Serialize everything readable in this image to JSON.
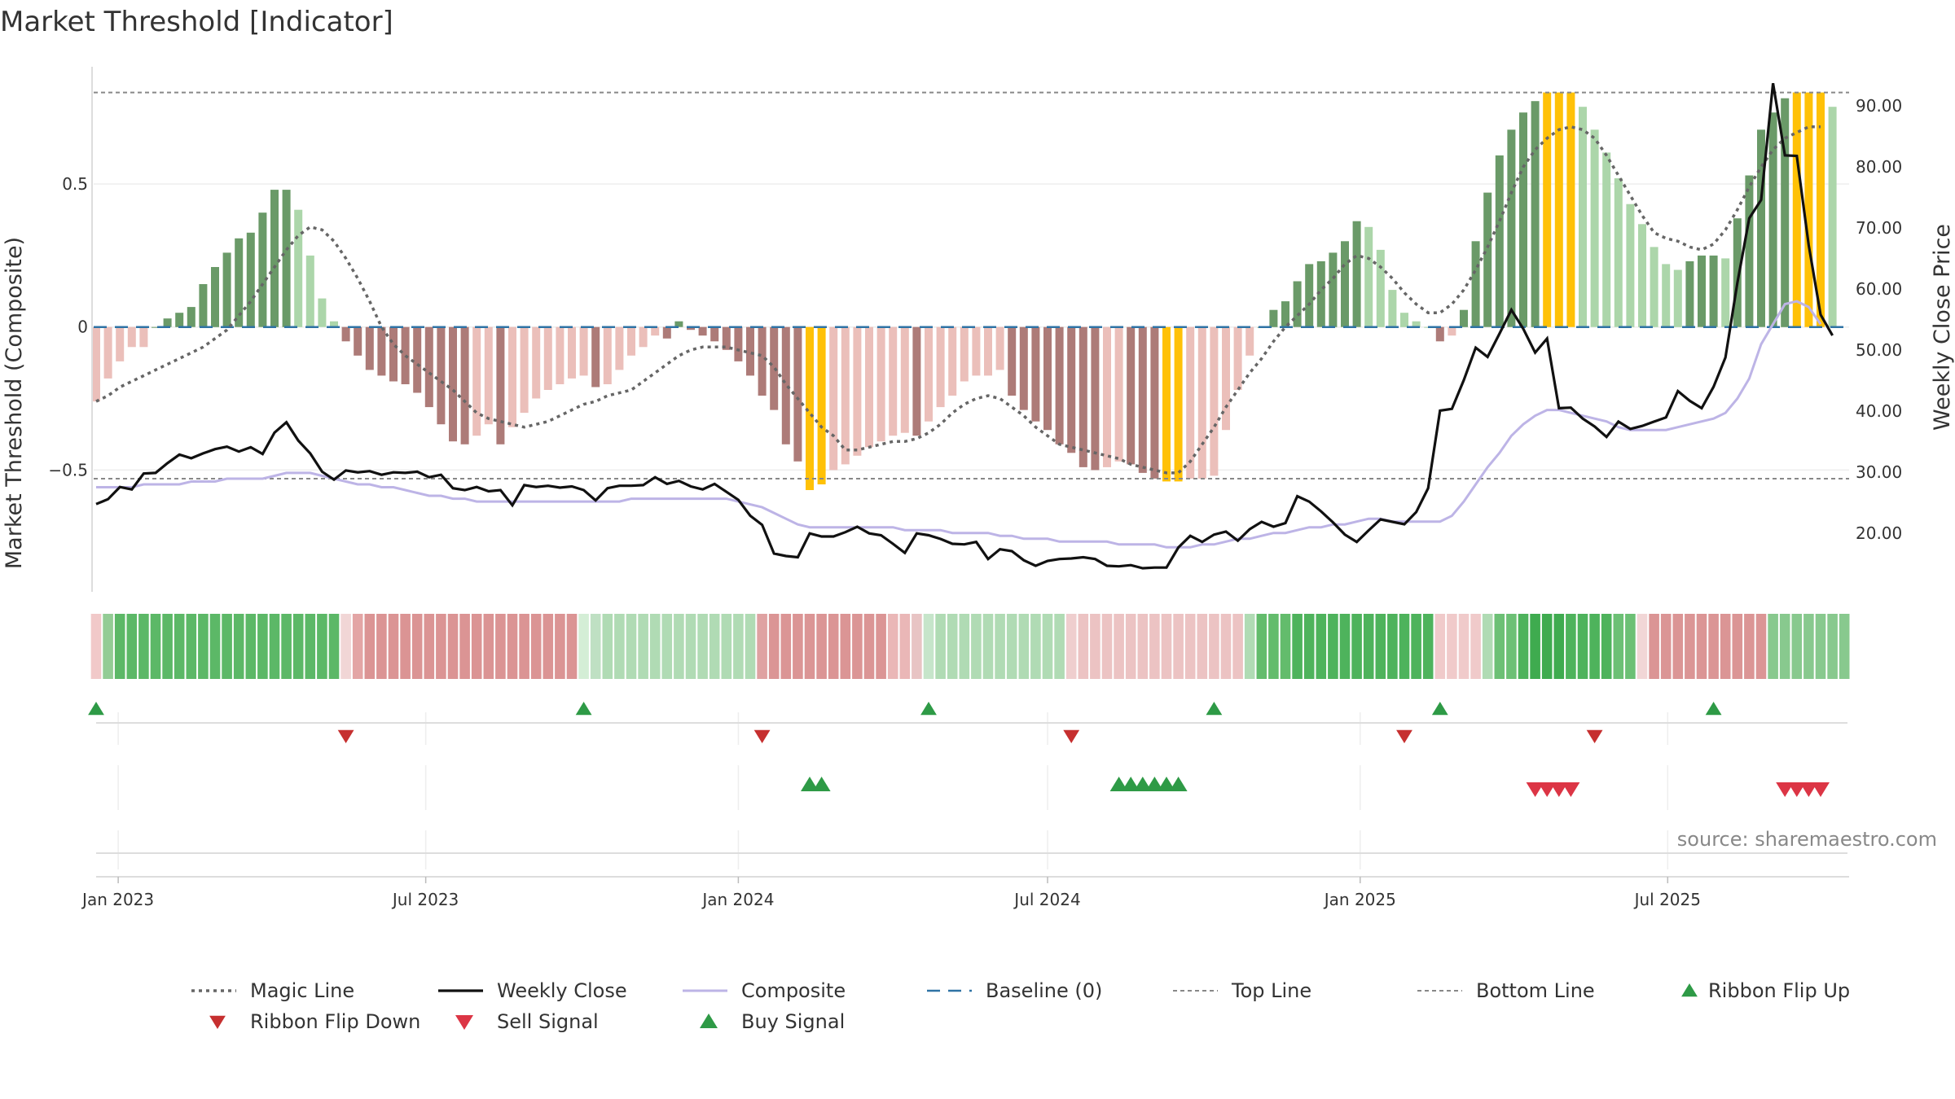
{
  "colors": {
    "pos_dark": "#6a9a68",
    "pos_light": "#acd6aa",
    "neg_dark": "#ad7b78",
    "neg_light": "#ebbfba",
    "extreme": "#ffc107",
    "magic_line": "#666666",
    "weekly_close": "#111111",
    "composite": "#bdb4e6",
    "baseline": "#2f73a5",
    "ref_line": "#888888",
    "ribbon_up": "#2e9a46",
    "ribbon_down": "#c62f2f",
    "buy": "#2e9a46",
    "sell": "#dc3545"
  },
  "chart_data": {
    "type": "bar",
    "title": "Market Threshold [Indicator]",
    "ylabel_left": "Market Threshold (Composite)",
    "ylabel_right": "Weekly Close Price",
    "source": "source: sharemaestro.com",
    "x_start": "2022-12-19",
    "x_step_days": 7,
    "x_ticks": [
      {
        "date": "2023-01-01",
        "label": "Jan 2023"
      },
      {
        "date": "2023-07-01",
        "label": "Jul 2023"
      },
      {
        "date": "2024-01-01",
        "label": "Jan 2024"
      },
      {
        "date": "2024-07-01",
        "label": "Jul 2024"
      },
      {
        "date": "2025-01-01",
        "label": "Jan 2025"
      },
      {
        "date": "2025-07-01",
        "label": "Jul 2025"
      }
    ],
    "y_left": {
      "min": -0.92,
      "max": 0.91,
      "ticks": [
        {
          "v": 0.5,
          "label": "0.5"
        },
        {
          "v": 0,
          "label": "0"
        },
        {
          "v": -0.5,
          "label": "−0.5"
        }
      ]
    },
    "y_right": {
      "min": 10.7,
      "max": 96.4,
      "ticks": [
        {
          "v": 20,
          "label": "20.00"
        },
        {
          "v": 30,
          "label": "30.00"
        },
        {
          "v": 40,
          "label": "40.00"
        },
        {
          "v": 50,
          "label": "50.00"
        },
        {
          "v": 60,
          "label": "60.00"
        },
        {
          "v": 70,
          "label": "70.00"
        },
        {
          "v": 80,
          "label": "80.00"
        },
        {
          "v": 90,
          "label": "90.00"
        }
      ]
    },
    "top_line": 0.82,
    "bottom_line": -0.53,
    "composite_bars": [
      -0.26,
      -0.18,
      -0.12,
      -0.07,
      -0.07,
      0,
      0.03,
      0.05,
      0.07,
      0.15,
      0.21,
      0.26,
      0.31,
      0.33,
      0.4,
      0.48,
      0.48,
      0.41,
      0.25,
      0.1,
      0.02,
      -0.05,
      -0.1,
      -0.15,
      -0.17,
      -0.19,
      -0.2,
      -0.23,
      -0.28,
      -0.34,
      -0.4,
      -0.41,
      -0.38,
      -0.34,
      -0.41,
      -0.35,
      -0.3,
      -0.25,
      -0.22,
      -0.2,
      -0.18,
      -0.17,
      -0.21,
      -0.2,
      -0.15,
      -0.1,
      -0.07,
      -0.03,
      -0.04,
      0.02,
      -0.01,
      -0.03,
      -0.05,
      -0.08,
      -0.12,
      -0.17,
      -0.24,
      -0.29,
      -0.41,
      -0.47,
      -0.57,
      -0.55,
      -0.5,
      -0.48,
      -0.45,
      -0.42,
      -0.4,
      -0.38,
      -0.37,
      -0.38,
      -0.33,
      -0.28,
      -0.24,
      -0.19,
      -0.17,
      -0.17,
      -0.15,
      -0.24,
      -0.29,
      -0.33,
      -0.36,
      -0.41,
      -0.44,
      -0.49,
      -0.5,
      -0.49,
      -0.47,
      -0.48,
      -0.51,
      -0.53,
      -0.54,
      -0.54,
      -0.53,
      -0.53,
      -0.52,
      -0.36,
      -0.22,
      -0.1,
      0,
      0.06,
      0.09,
      0.16,
      0.22,
      0.23,
      0.26,
      0.3,
      0.37,
      0.35,
      0.27,
      0.13,
      0.05,
      0.02,
      0,
      -0.05,
      -0.03,
      0.06,
      0.3,
      0.47,
      0.6,
      0.69,
      0.75,
      0.79,
      0.82,
      0.82,
      0.82,
      0.77,
      0.69,
      0.61,
      0.52,
      0.43,
      0.36,
      0.28,
      0.22,
      0.2,
      0.23,
      0.25,
      0.25,
      0.24,
      0.38,
      0.53,
      0.69,
      0.75,
      0.8,
      0.82,
      0.82,
      0.82,
      0.77
    ],
    "weekly_close": [
      24.8,
      25.6,
      27.6,
      27.2,
      29.8,
      29.9,
      31.5,
      32.9,
      32.3,
      33.1,
      33.8,
      34.2,
      33.4,
      34.1,
      33.0,
      36.5,
      38.2,
      35.2,
      33.1,
      30.1,
      28.8,
      30.3,
      30.0,
      30.2,
      29.6,
      30.0,
      29.9,
      30.1,
      29.2,
      29.6,
      27.4,
      27.1,
      27.6,
      26.9,
      27.1,
      24.6,
      27.9,
      27.6,
      27.8,
      27.5,
      27.7,
      27.1,
      25.4,
      27.4,
      27.8,
      27.8,
      27.9,
      29.2,
      28.1,
      28.6,
      27.7,
      27.2,
      28.1,
      26.8,
      25.5,
      22.9,
      21.4,
      16.7,
      16.3,
      16.1,
      20.0,
      19.5,
      19.5,
      20.2,
      21.1,
      20.0,
      19.7,
      18.3,
      16.8,
      20.0,
      19.7,
      19.1,
      18.3,
      18.2,
      18.6,
      15.8,
      17.4,
      17.1,
      15.6,
      14.7,
      15.5,
      15.8,
      15.9,
      16.1,
      15.8,
      14.7,
      14.6,
      14.8,
      14.3,
      14.4,
      14.4,
      17.7,
      19.6,
      18.6,
      19.8,
      20.3,
      18.8,
      20.7,
      21.9,
      21.1,
      21.7,
      26.1,
      25.2,
      23.6,
      21.8,
      19.8,
      18.6,
      20.5,
      22.3,
      21.9,
      21.5,
      23.5,
      27.4,
      40.1,
      40.4,
      45.1,
      50.4,
      48.9,
      52.7,
      56.6,
      53.5,
      49.6,
      51.9,
      40.5,
      40.6,
      38.8,
      37.5,
      35.8,
      38.3,
      37.1,
      37.6,
      38.3,
      39.0,
      43.3,
      41.7,
      40.5,
      44.0,
      48.8,
      61.0,
      71.6,
      74.6,
      93.7,
      81.9,
      81.8,
      67.2,
      55.8,
      52.4
    ],
    "composite_line": [
      -0.56,
      -0.56,
      -0.56,
      -0.56,
      -0.55,
      -0.55,
      -0.55,
      -0.55,
      -0.54,
      -0.54,
      -0.54,
      -0.53,
      -0.53,
      -0.53,
      -0.53,
      -0.52,
      -0.51,
      -0.51,
      -0.51,
      -0.52,
      -0.53,
      -0.54,
      -0.55,
      -0.55,
      -0.56,
      -0.56,
      -0.57,
      -0.58,
      -0.59,
      -0.59,
      -0.6,
      -0.6,
      -0.61,
      -0.61,
      -0.61,
      -0.61,
      -0.61,
      -0.61,
      -0.61,
      -0.61,
      -0.61,
      -0.61,
      -0.61,
      -0.61,
      -0.61,
      -0.6,
      -0.6,
      -0.6,
      -0.6,
      -0.6,
      -0.6,
      -0.6,
      -0.6,
      -0.6,
      -0.61,
      -0.62,
      -0.63,
      -0.65,
      -0.67,
      -0.69,
      -0.7,
      -0.7,
      -0.7,
      -0.7,
      -0.7,
      -0.7,
      -0.7,
      -0.7,
      -0.71,
      -0.71,
      -0.71,
      -0.71,
      -0.72,
      -0.72,
      -0.72,
      -0.72,
      -0.73,
      -0.73,
      -0.74,
      -0.74,
      -0.74,
      -0.75,
      -0.75,
      -0.75,
      -0.75,
      -0.75,
      -0.76,
      -0.76,
      -0.76,
      -0.76,
      -0.77,
      -0.77,
      -0.77,
      -0.76,
      -0.76,
      -0.75,
      -0.74,
      -0.74,
      -0.73,
      -0.72,
      -0.72,
      -0.71,
      -0.7,
      -0.7,
      -0.69,
      -0.69,
      -0.68,
      -0.67,
      -0.67,
      -0.68,
      -0.68,
      -0.68,
      -0.68,
      -0.68,
      -0.66,
      -0.61,
      -0.55,
      -0.49,
      -0.44,
      -0.38,
      -0.34,
      -0.31,
      -0.29,
      -0.29,
      -0.3,
      -0.31,
      -0.32,
      -0.33,
      -0.35,
      -0.36,
      -0.36,
      -0.36,
      -0.36,
      -0.35,
      -0.34,
      -0.33,
      -0.32,
      -0.3,
      -0.25,
      -0.18,
      -0.06,
      0.01,
      0.08,
      0.09,
      0.07,
      0.01
    ],
    "magic_line": [
      -0.26,
      -0.24,
      -0.21,
      -0.19,
      -0.17,
      -0.15,
      -0.13,
      -0.11,
      -0.09,
      -0.07,
      -0.04,
      -0.01,
      0.04,
      0.09,
      0.15,
      0.21,
      0.27,
      0.32,
      0.35,
      0.34,
      0.3,
      0.24,
      0.17,
      0.09,
      0.0,
      -0.06,
      -0.1,
      -0.13,
      -0.16,
      -0.19,
      -0.22,
      -0.26,
      -0.3,
      -0.32,
      -0.33,
      -0.34,
      -0.35,
      -0.34,
      -0.33,
      -0.31,
      -0.29,
      -0.27,
      -0.26,
      -0.24,
      -0.23,
      -0.22,
      -0.19,
      -0.16,
      -0.13,
      -0.1,
      -0.08,
      -0.07,
      -0.07,
      -0.07,
      -0.08,
      -0.09,
      -0.1,
      -0.14,
      -0.2,
      -0.25,
      -0.3,
      -0.35,
      -0.38,
      -0.43,
      -0.43,
      -0.42,
      -0.41,
      -0.4,
      -0.4,
      -0.39,
      -0.37,
      -0.34,
      -0.3,
      -0.27,
      -0.25,
      -0.24,
      -0.25,
      -0.28,
      -0.31,
      -0.35,
      -0.38,
      -0.41,
      -0.42,
      -0.43,
      -0.44,
      -0.45,
      -0.46,
      -0.48,
      -0.49,
      -0.5,
      -0.51,
      -0.51,
      -0.47,
      -0.41,
      -0.35,
      -0.28,
      -0.22,
      -0.16,
      -0.11,
      -0.05,
      0.0,
      0.04,
      0.08,
      0.13,
      0.17,
      0.22,
      0.25,
      0.24,
      0.21,
      0.17,
      0.12,
      0.08,
      0.05,
      0.05,
      0.08,
      0.13,
      0.2,
      0.28,
      0.37,
      0.47,
      0.56,
      0.62,
      0.66,
      0.69,
      0.7,
      0.69,
      0.66,
      0.6,
      0.53,
      0.46,
      0.39,
      0.33,
      0.31,
      0.3,
      0.28,
      0.27,
      0.29,
      0.34,
      0.41,
      0.49,
      0.56,
      0.62,
      0.66,
      0.68,
      0.7,
      0.7
    ],
    "ribbon_colors": [
      "#f1c9c9",
      "#93cc95",
      "#5cb867",
      "#5cb867",
      "#5cb867",
      "#5cb867",
      "#5cb867",
      "#5cb867",
      "#5cb867",
      "#5cb867",
      "#5cb867",
      "#5cb867",
      "#5cb867",
      "#5cb867",
      "#5cb867",
      "#5cb867",
      "#5cb867",
      "#5cb867",
      "#5cb867",
      "#5cb867",
      "#5cb867",
      "#f1d6d6",
      "#e3a5a5",
      "#db9494",
      "#db9494",
      "#db9494",
      "#db9494",
      "#db9494",
      "#db9494",
      "#db9494",
      "#db9494",
      "#db9494",
      "#db9494",
      "#db9494",
      "#db9494",
      "#db9494",
      "#db9494",
      "#db9494",
      "#db9494",
      "#db9494",
      "#db9494",
      "#d4eed6",
      "#bfe0c3",
      "#b0dbb4",
      "#b0dbb4",
      "#b0dbb4",
      "#b0dbb4",
      "#b0dbb4",
      "#b0dbb4",
      "#b0dbb4",
      "#b0dbb4",
      "#b0dbb4",
      "#b0dbb4",
      "#b0dbb4",
      "#b0dbb4",
      "#b0dbb4",
      "#dfa2a2",
      "#db9595",
      "#db9595",
      "#db9595",
      "#db9595",
      "#db9595",
      "#db9595",
      "#db9595",
      "#db9595",
      "#db9595",
      "#db9595",
      "#eab7b7",
      "#eab7b7",
      "#e8c4c4",
      "#c6e5ca",
      "#b0dbb4",
      "#b0dbb4",
      "#b0dbb4",
      "#b0dbb4",
      "#b0dbb4",
      "#b0dbb4",
      "#b0dbb4",
      "#b0dbb4",
      "#b0dbb4",
      "#b0dbb4",
      "#b0dbb4",
      "#efcece",
      "#ecc3c3",
      "#ecc3c3",
      "#ecc3c3",
      "#ecc3c3",
      "#ecc3c3",
      "#ecc3c3",
      "#ecc3c3",
      "#ecc3c3",
      "#ecc3c3",
      "#ecc3c3",
      "#ecc3c3",
      "#ecc3c3",
      "#ecc3c3",
      "#ecc3c3",
      "#b0dbb4",
      "#63bc6c",
      "#63bc6c",
      "#63bc6c",
      "#4eb35c",
      "#4eb35c",
      "#4eb35c",
      "#4eb35c",
      "#4eb35c",
      "#4eb35c",
      "#4eb35c",
      "#4eb35c",
      "#4eb35c",
      "#4eb35c",
      "#4eb35c",
      "#4eb35c",
      "#f0caca",
      "#f0caca",
      "#f0caca",
      "#f0caca",
      "#b0dbb4",
      "#6cc075",
      "#6cc075",
      "#4eb35c",
      "#3fab4f",
      "#3fab4f",
      "#3fab4f",
      "#4eb35c",
      "#4eb35c",
      "#4eb35c",
      "#4eb35c",
      "#6cc075",
      "#6cc075",
      "#f1d6d6",
      "#db9595",
      "#db9595",
      "#db9595",
      "#db9595",
      "#db9595",
      "#db9595",
      "#db9595",
      "#db9595",
      "#db9595",
      "#db9595",
      "#88c98e",
      "#88c98e",
      "#88c98e",
      "#88c98e",
      "#88c98e",
      "#88c98e",
      "#88c98e"
    ],
    "ribbon_flip_up_idx": [
      0,
      41,
      70,
      94,
      113,
      136
    ],
    "ribbon_flip_down_idx": [
      21,
      56,
      82,
      110,
      126
    ],
    "buy_signal_idx": [
      60,
      61,
      86,
      87,
      88,
      89,
      90,
      91
    ],
    "sell_signal_idx": [
      121,
      122,
      123,
      124,
      142,
      143,
      144,
      145
    ],
    "legend": [
      {
        "key": "magic",
        "label": "Magic Line"
      },
      {
        "key": "close",
        "label": "Weekly Close"
      },
      {
        "key": "composite",
        "label": "Composite"
      },
      {
        "key": "baseline",
        "label": "Baseline (0)"
      },
      {
        "key": "top",
        "label": "Top Line"
      },
      {
        "key": "bottom",
        "label": "Bottom Line"
      },
      {
        "key": "flipup",
        "label": "Ribbon Flip Up"
      },
      {
        "key": "flipdown",
        "label": "Ribbon Flip Down"
      },
      {
        "key": "sell",
        "label": "Sell Signal"
      },
      {
        "key": "buy",
        "label": "Buy Signal"
      }
    ]
  }
}
